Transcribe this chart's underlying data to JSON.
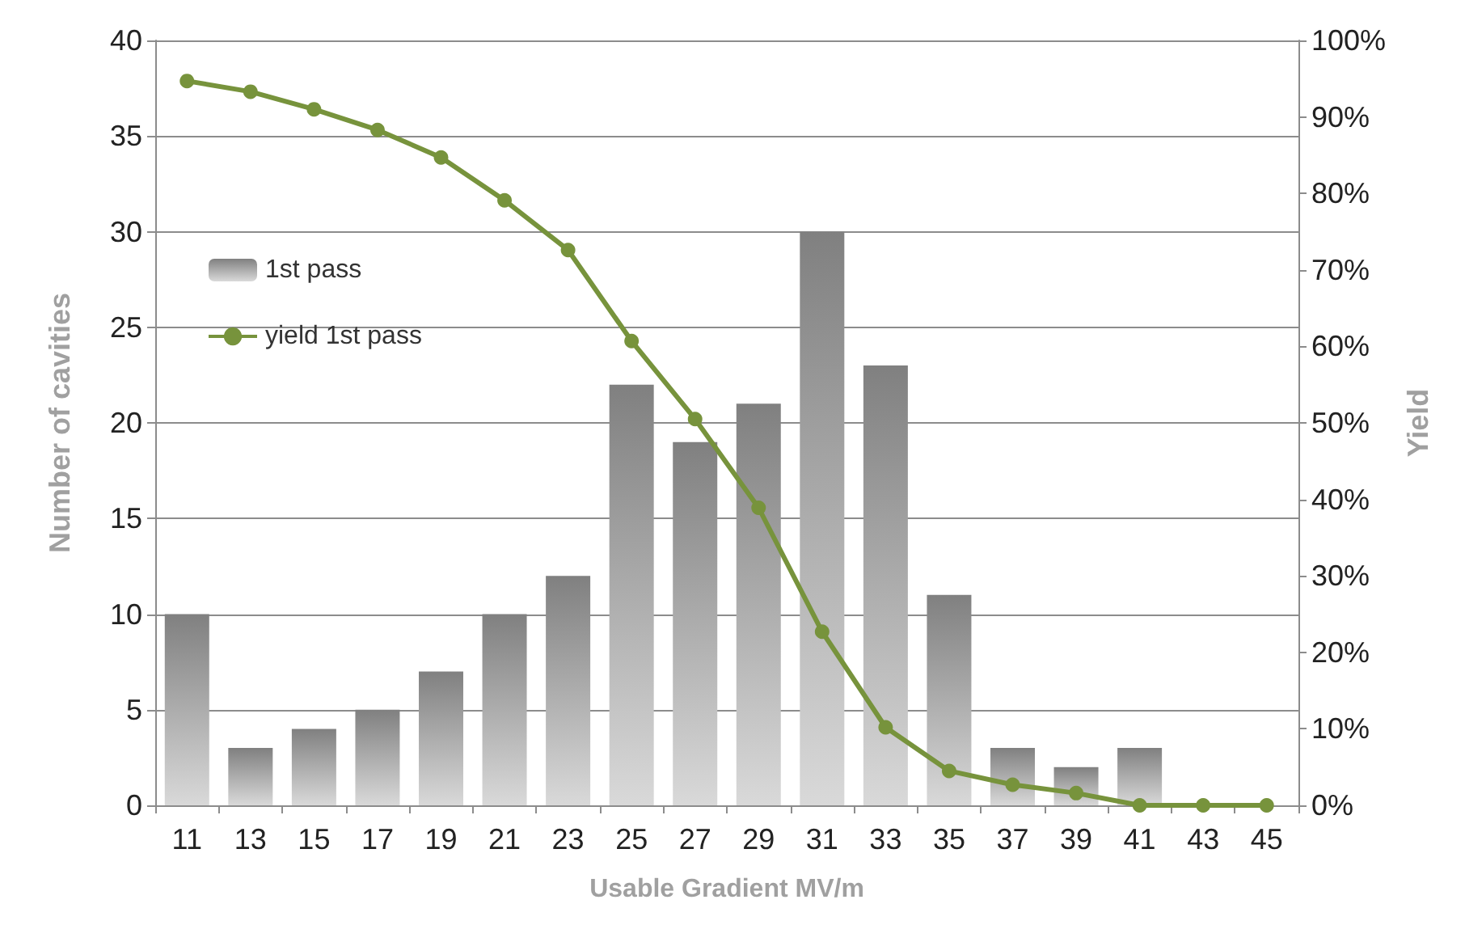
{
  "chart_data": {
    "type": "bar",
    "xlabel": "Usable Gradient MV/m",
    "ylabel": "Number of cavities",
    "y2label": "Yield",
    "categories": [
      "11",
      "13",
      "15",
      "17",
      "19",
      "21",
      "23",
      "25",
      "27",
      "29",
      "31",
      "33",
      "35",
      "37",
      "39",
      "41",
      "43",
      "45"
    ],
    "series": [
      {
        "name": "1st pass",
        "color": "#808080",
        "values": [
          10,
          3,
          4,
          5,
          7,
          10,
          12,
          22,
          19,
          21,
          30,
          23,
          11,
          3,
          2,
          3,
          0,
          0
        ]
      },
      {
        "name": "yield 1st pass",
        "type": "line",
        "axis": "y2",
        "color": "#77933c",
        "marker": "circle",
        "values": [
          94.7,
          93.3,
          91,
          88.3,
          84.7,
          79.1,
          72.6,
          60.7,
          50.5,
          38.9,
          22.7,
          10.2,
          4.5,
          2.7,
          1.6,
          0,
          0,
          0
        ]
      }
    ],
    "ylim": [
      0,
      40
    ],
    "yticks": [
      0,
      5,
      10,
      15,
      20,
      25,
      30,
      35,
      40
    ],
    "y2lim": [
      0,
      100
    ],
    "y2ticks": [
      {
        "value": 0,
        "label": "0%"
      },
      {
        "value": 10,
        "label": "10%"
      },
      {
        "value": 20,
        "label": "20%"
      },
      {
        "value": 30,
        "label": "30%"
      },
      {
        "value": 40,
        "label": "40%"
      },
      {
        "value": 50,
        "label": "50%"
      },
      {
        "value": 60,
        "label": "60%"
      },
      {
        "value": 70,
        "label": "70%"
      },
      {
        "value": 80,
        "label": "80%"
      },
      {
        "value": 90,
        "label": "90%"
      },
      {
        "value": 100,
        "label": "100%"
      }
    ],
    "grid": "y",
    "legend": "top left"
  }
}
